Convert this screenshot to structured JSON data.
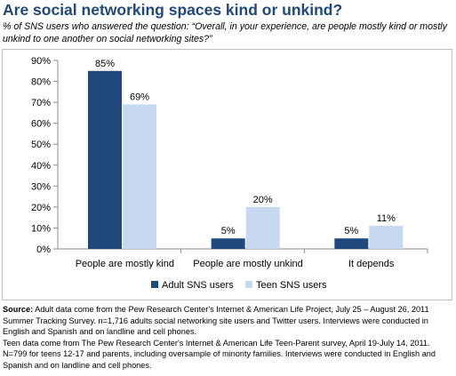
{
  "title": "Are social networking spaces kind or unkind?",
  "subtitle": "% of SNS users who answered the question: “Overall, in your experience, are people mostly kind or mostly unkind to one another on social networking sites?”",
  "source": {
    "label": "Source:",
    "adult_text": "Adult data come from the Pew Research Center's Internet & American Life Project, July 25 – August 26, 2011 Summer Tracking Survey. n=1,716 adults social networking site users and Twitter users. Interviews were conducted in English and Spanish and on landline and cell phones.",
    "teen_text": "Teen data come from The Pew Research Center's Internet & American Life Teen-Parent survey, April 19-July 14, 2011. N=799 for teens 12-17 and parents, including oversample of minority families. Interviews were conducted in English and Spanish and on landline and cell phones."
  },
  "colors": {
    "adult": "#1f497d",
    "teen": "#c6d9f1",
    "axis": "#8c8c8c",
    "title": "#1f497d"
  },
  "chart_data": {
    "type": "bar",
    "categories": [
      "People are mostly kind",
      "People are mostly unkind",
      "It depends"
    ],
    "series": [
      {
        "name": "Adult SNS users",
        "values": [
          85,
          5,
          5
        ],
        "labels": [
          "85%",
          "5%",
          "5%"
        ]
      },
      {
        "name": "Teen SNS users",
        "values": [
          69,
          20,
          11
        ],
        "labels": [
          "69%",
          "20%",
          "11%"
        ]
      }
    ],
    "y_ticks": [
      "0%",
      "10%",
      "20%",
      "30%",
      "40%",
      "50%",
      "60%",
      "70%",
      "80%",
      "90%"
    ],
    "ylim": [
      0,
      90
    ],
    "grid": false,
    "legend": "bottom"
  }
}
